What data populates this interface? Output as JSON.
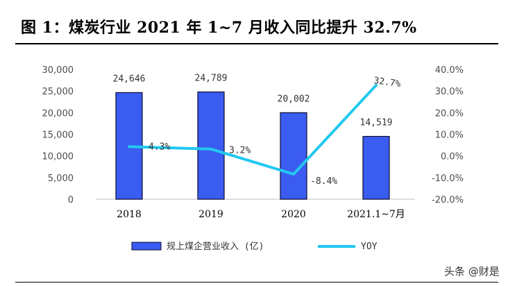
{
  "title": "图 1：煤炭行业 2021 年 1~7 月收入同比提升 32.7%",
  "watermark": "头条 @财是",
  "chart_data": {
    "type": "bar",
    "categories": [
      "2018",
      "2019",
      "2020",
      "2021.1~7月"
    ],
    "series": [
      {
        "name": "规上煤企营业收入 (亿)",
        "type": "bar",
        "axis": "left",
        "color": "#3a5cf0",
        "values": [
          24646,
          24789,
          20002,
          14519
        ],
        "labels": [
          "24,646",
          "24,789",
          "20,002",
          "14,519"
        ]
      },
      {
        "name": "YOY",
        "type": "line",
        "axis": "right",
        "color": "#22c8f0",
        "values": [
          4.3,
          3.2,
          -8.4,
          32.7
        ],
        "labels": [
          "4.3%",
          "3.2%",
          "-8.4%",
          "32.7%"
        ]
      }
    ],
    "ylim_left": [
      0,
      30000
    ],
    "yticks_left": [
      "0",
      "5,000",
      "10,000",
      "15,000",
      "20,000",
      "25,000",
      "30,000"
    ],
    "ylim_right": [
      -20,
      40
    ],
    "yticks_right": [
      "-20.0%",
      "-10.0%",
      "0.0%",
      "10.0%",
      "20.0%",
      "30.0%",
      "40.0%"
    ],
    "grid": false,
    "legend_position": "bottom"
  }
}
